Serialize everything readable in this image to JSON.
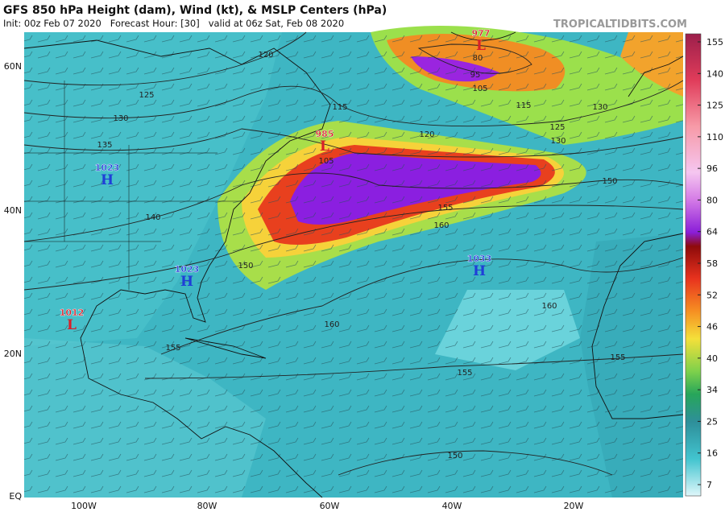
{
  "header": {
    "title": "GFS 850 hPa Height (dam), Wind (kt), & MSLP Centers (hPa)",
    "subtitle": "Init: 00z Feb 07 2020   Forecast Hour: [30]   valid at 06z Sat, Feb 08 2020",
    "credit": "TROPICALTIDBITS.COM"
  },
  "lat_labels": [
    "60N",
    "40N",
    "20N",
    "EQ"
  ],
  "lon_labels": [
    "100W",
    "80W",
    "60W",
    "40W",
    "20W"
  ],
  "colorbar": {
    "ticks": [
      155,
      140,
      125,
      110,
      96,
      80,
      64,
      58,
      52,
      46,
      40,
      34,
      25,
      16,
      7
    ]
  },
  "centers": [
    {
      "pressure": 1023,
      "kind": "H"
    },
    {
      "pressure": 1023,
      "kind": "H"
    },
    {
      "pressure": 1012,
      "kind": "L"
    },
    {
      "pressure": 1033,
      "kind": "H"
    },
    {
      "pressure": 985,
      "kind": "L"
    },
    {
      "pressure": 977,
      "kind": "L"
    }
  ],
  "contour_labels": [
    125,
    130,
    135,
    140,
    150,
    155,
    160,
    155,
    160,
    155,
    150,
    150,
    155,
    160,
    120,
    115,
    115,
    125,
    130,
    105,
    95,
    105,
    80,
    130,
    120
  ]
}
